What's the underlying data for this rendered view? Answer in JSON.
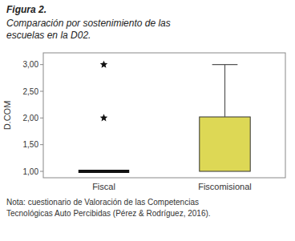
{
  "chart_data": {
    "type": "bar",
    "title": "Figura 2.",
    "subtitle": "Comparación por sostenimiento de las\nescuelas en la D02.",
    "note": "Nota: cuestionario de Valoración de las Competencias\nTecnológicas Auto Percibidas (Pérez & Rodríguez, 2016).",
    "categories": [
      "Fiscal",
      "Fiscomisional"
    ],
    "values": [
      1.0,
      2.02
    ],
    "bottoms": [
      1.0,
      1.0
    ],
    "error_top": [
      null,
      3.0
    ],
    "outliers": [
      [
        2.0,
        3.0
      ],
      []
    ],
    "colors": [
      "#111111",
      "#ddd855"
    ],
    "ylabel": "D.COM",
    "ylim": [
      0.88,
      3.22
    ],
    "yticks": [
      {
        "value": 1.0,
        "label": "1,00"
      },
      {
        "value": 1.5,
        "label": "1,50"
      },
      {
        "value": 2.0,
        "label": "2,00"
      },
      {
        "value": 2.5,
        "label": "2,50"
      },
      {
        "value": 3.0,
        "label": "3,00"
      }
    ],
    "grid": false
  }
}
